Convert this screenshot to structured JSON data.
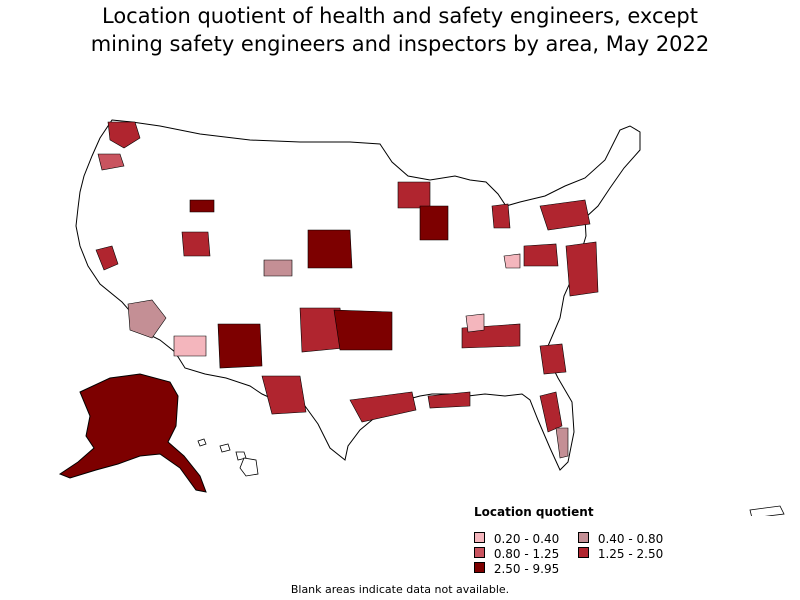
{
  "title": {
    "line1": "Location quotient of health and safety engineers, except",
    "line2": "mining safety engineers and inspectors by area, May 2022"
  },
  "legend": {
    "title": "Location quotient",
    "items": [
      {
        "label": "0.20 - 0.40",
        "color": "#f4b6bd"
      },
      {
        "label": "0.40 - 0.80",
        "color": "#c48f95"
      },
      {
        "label": "0.80 - 1.25",
        "color": "#c9545f"
      },
      {
        "label": "1.25 - 2.50",
        "color": "#b0252f"
      },
      {
        "label": "2.50 - 9.95",
        "color": "#7d0000"
      }
    ]
  },
  "footnote": "Blank areas indicate data not available.",
  "colors": {
    "outline": "#000000",
    "no_data": "#ffffff"
  }
}
